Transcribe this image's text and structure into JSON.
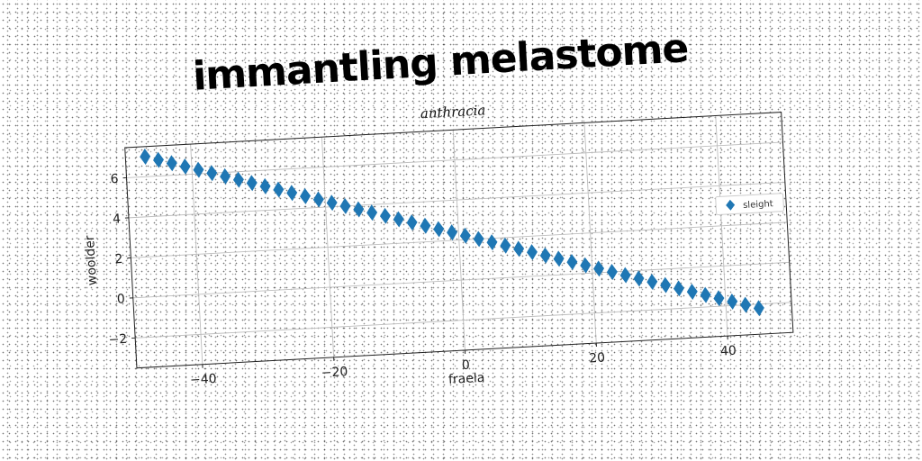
{
  "title": "immantling melastome",
  "chart_data": {
    "type": "scatter",
    "title": "anthracia",
    "xlabel": "fraela",
    "ylabel": "woolder",
    "xlim": [
      -50,
      50
    ],
    "ylim": [
      -3.5,
      7.5
    ],
    "xticks": [
      -40,
      -20,
      0,
      20,
      40
    ],
    "yticks": [
      -2,
      0,
      2,
      4,
      6
    ],
    "xtick_labels": [
      "−40",
      "−20",
      "0",
      "20",
      "40"
    ],
    "ytick_labels": [
      "−2",
      "0",
      "2",
      "4",
      "6"
    ],
    "grid": true,
    "legend_position": "right",
    "series": [
      {
        "name": "sleight",
        "marker": "diamond",
        "color": "#1f77b4",
        "x": [
          -47,
          -45,
          -43,
          -41,
          -39,
          -37,
          -35,
          -33,
          -31,
          -29,
          -27,
          -25,
          -23,
          -21,
          -19,
          -17,
          -15,
          -13,
          -11,
          -9,
          -7,
          -5,
          -3,
          -1,
          1,
          3,
          5,
          7,
          9,
          11,
          13,
          15,
          17,
          19,
          21,
          23,
          25,
          27,
          29,
          31,
          33,
          35,
          37,
          39,
          41,
          43,
          45
        ],
        "y": [
          7.0,
          6.8,
          6.6,
          6.4,
          6.2,
          6.0,
          5.8,
          5.6,
          5.4,
          5.2,
          5.0,
          4.8,
          4.6,
          4.4,
          4.2,
          4.0,
          3.8,
          3.6,
          3.4,
          3.2,
          3.0,
          2.8,
          2.6,
          2.4,
          2.2,
          2.0,
          1.8,
          1.6,
          1.4,
          1.2,
          1.0,
          0.8,
          0.6,
          0.4,
          0.2,
          0.0,
          -0.2,
          -0.4,
          -0.6,
          -0.8,
          -1.0,
          -1.2,
          -1.4,
          -1.6,
          -1.8,
          -2.0,
          -2.2
        ]
      }
    ]
  }
}
